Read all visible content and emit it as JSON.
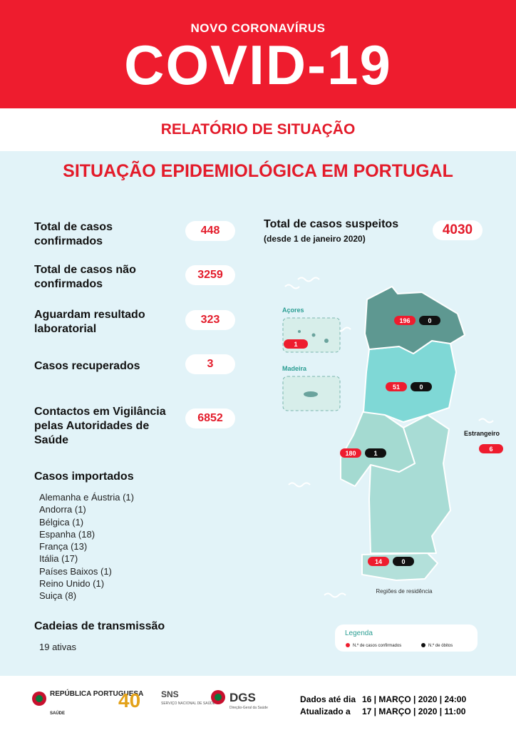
{
  "header": {
    "kicker": "NOVO CORONAVÍRUS",
    "title": "COVID-19",
    "subtitle": "RELATÓRIO DE SITUAÇÃO"
  },
  "section_title": "SITUAÇÃO EPIDEMIOLÓGICA EM PORTUGAL",
  "stats": [
    {
      "label": "Total de casos confirmados",
      "value": "448"
    },
    {
      "label": "Total de casos não confirmados",
      "value": "3259"
    },
    {
      "label": "Aguardam resultado laboratorial",
      "value": "323"
    },
    {
      "label": "Casos recuperados",
      "value": "3"
    },
    {
      "label": "Contactos em Vigilância pelas Autoridades de Saúde",
      "value": "6852"
    }
  ],
  "suspected": {
    "label": "Total de casos suspeitos",
    "note": "(desde 1 de janeiro 2020)",
    "value": "4030"
  },
  "imported": {
    "title": "Casos importados",
    "items": [
      "Alemanha e Áustria (1)",
      "Andorra (1)",
      "Bélgica (1)",
      "Espanha (18)",
      "França (13)",
      "Itália (17)",
      "Países Baixos (1)",
      "Reino Unido (1)",
      "Suiça (8)"
    ]
  },
  "chains": {
    "title": "Cadeias de transmissão",
    "text": "19 ativas"
  },
  "map": {
    "azores": {
      "label": "Açores",
      "confirmed": "1"
    },
    "madeira": {
      "label": "Madeira"
    },
    "abroad": {
      "label": "Estrangeiro",
      "confirmed": "6"
    },
    "regions": [
      {
        "confirmed": "196",
        "deaths": "0"
      },
      {
        "confirmed": "51",
        "deaths": "0"
      },
      {
        "confirmed": "180",
        "deaths": "1"
      },
      {
        "confirmed": "14",
        "deaths": "0"
      }
    ],
    "caption": "Regiões de residência"
  },
  "legend": {
    "title": "Legenda",
    "confirmed": "N.º de casos confirmados",
    "deaths": "N.º de óbitos"
  },
  "footer": {
    "logos": [
      "REPÚBLICA PORTUGUESA",
      "SAÚDE",
      "SNS",
      "SERVIÇO NACIONAL DE SAÚDE",
      "DGS",
      "Direção-Geral da Saúde"
    ],
    "data_until": {
      "label": "Dados até dia",
      "value": "16 | MARÇO | 2020 | 24:00"
    },
    "updated": {
      "label": "Atualizado a",
      "value": "17 | MARÇO | 2020 | 11:00"
    }
  }
}
